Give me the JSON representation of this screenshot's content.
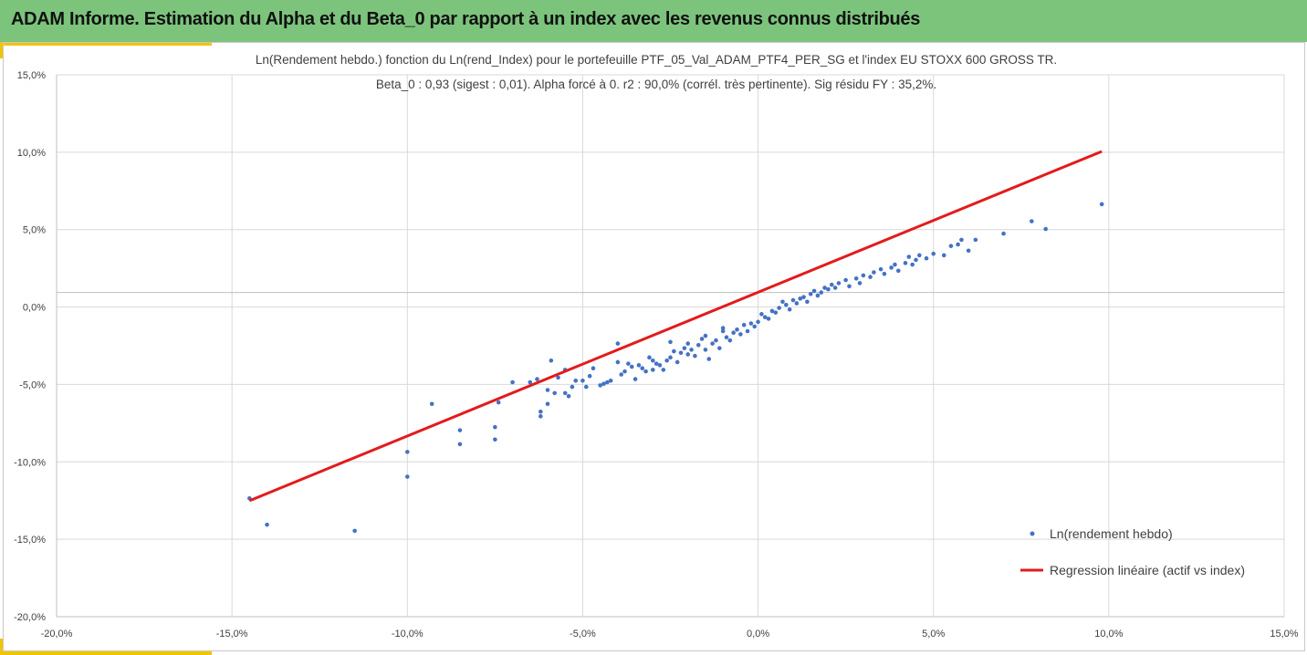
{
  "header": {
    "title": "ADAM Informe. Estimation du Alpha et du Beta_0 par rapport à un index avec les revenus connus distribués"
  },
  "colors": {
    "header_bg": "#7cc47c",
    "accent": "#f2c400",
    "points": "#4472c4",
    "regression": "#e31b1b",
    "grid": "#d9d9d9"
  },
  "chart_data": {
    "type": "scatter",
    "title": "Ln(Rendement hebdo.) fonction du Ln(rend_Index) pour le portefeuille PTF_05_Val_ADAM_PTF4_PER_SG et l'index EU STOXX 600 GROSS TR.",
    "subtitle": "Beta_0 : 0,93 (sigest : 0,01).  Alpha forcé à 0. r2 : 90,0% (corrél. très pertinente). Sig résidu FY : 35,2%.",
    "xlabel": "",
    "ylabel": "",
    "xlim": [
      -0.2,
      0.15
    ],
    "ylim": [
      -0.2,
      0.15
    ],
    "x_ticks": [
      "-20,0%",
      "-15,0%",
      "-10,0%",
      "-5,0%",
      "0,0%",
      "5,0%",
      "10,0%",
      "15,0%"
    ],
    "y_ticks": [
      "15,0%",
      "10,0%",
      "5,0%",
      "0,0%",
      "-5,0%",
      "-10,0%",
      "-15,0%",
      "-20,0%"
    ],
    "grid": true,
    "legend_position": "bottom-right",
    "series": [
      {
        "name": "Ln(rendement hebdo)",
        "type": "scatter",
        "points": [
          [
            -0.145,
            -0.133
          ],
          [
            -0.14,
            -0.15
          ],
          [
            -0.115,
            -0.154
          ],
          [
            -0.1,
            -0.119
          ],
          [
            -0.1,
            -0.103
          ],
          [
            -0.093,
            -0.072
          ],
          [
            -0.085,
            -0.089
          ],
          [
            -0.085,
            -0.098
          ],
          [
            -0.075,
            -0.095
          ],
          [
            -0.075,
            -0.087
          ],
          [
            -0.074,
            -0.071
          ],
          [
            -0.07,
            -0.058
          ],
          [
            -0.065,
            -0.058
          ],
          [
            -0.063,
            -0.056
          ],
          [
            -0.062,
            -0.08
          ],
          [
            -0.062,
            -0.077
          ],
          [
            -0.06,
            -0.072
          ],
          [
            -0.06,
            -0.063
          ],
          [
            -0.059,
            -0.044
          ],
          [
            -0.058,
            -0.065
          ],
          [
            -0.057,
            -0.055
          ],
          [
            -0.055,
            -0.065
          ],
          [
            -0.055,
            -0.05
          ],
          [
            -0.054,
            -0.067
          ],
          [
            -0.053,
            -0.061
          ],
          [
            -0.052,
            -0.057
          ],
          [
            -0.05,
            -0.057
          ],
          [
            -0.049,
            -0.061
          ],
          [
            -0.048,
            -0.054
          ],
          [
            -0.047,
            -0.049
          ],
          [
            -0.045,
            -0.06
          ],
          [
            -0.044,
            -0.059
          ],
          [
            -0.043,
            -0.058
          ],
          [
            -0.042,
            -0.057
          ],
          [
            -0.04,
            -0.033
          ],
          [
            -0.04,
            -0.045
          ],
          [
            -0.039,
            -0.053
          ],
          [
            -0.038,
            -0.051
          ],
          [
            -0.037,
            -0.046
          ],
          [
            -0.036,
            -0.048
          ],
          [
            -0.035,
            -0.056
          ],
          [
            -0.034,
            -0.047
          ],
          [
            -0.033,
            -0.049
          ],
          [
            -0.032,
            -0.051
          ],
          [
            -0.031,
            -0.042
          ],
          [
            -0.03,
            -0.044
          ],
          [
            -0.03,
            -0.05
          ],
          [
            -0.029,
            -0.046
          ],
          [
            -0.028,
            -0.047
          ],
          [
            -0.027,
            -0.05
          ],
          [
            -0.026,
            -0.044
          ],
          [
            -0.025,
            -0.032
          ],
          [
            -0.025,
            -0.042
          ],
          [
            -0.024,
            -0.038
          ],
          [
            -0.023,
            -0.045
          ],
          [
            -0.022,
            -0.039
          ],
          [
            -0.021,
            -0.036
          ],
          [
            -0.02,
            -0.04
          ],
          [
            -0.02,
            -0.033
          ],
          [
            -0.019,
            -0.037
          ],
          [
            -0.018,
            -0.041
          ],
          [
            -0.017,
            -0.034
          ],
          [
            -0.016,
            -0.03
          ],
          [
            -0.015,
            -0.037
          ],
          [
            -0.015,
            -0.028
          ],
          [
            -0.014,
            -0.043
          ],
          [
            -0.013,
            -0.033
          ],
          [
            -0.012,
            -0.031
          ],
          [
            -0.011,
            -0.036
          ],
          [
            -0.01,
            -0.023
          ],
          [
            -0.01,
            -0.025
          ],
          [
            -0.009,
            -0.029
          ],
          [
            -0.008,
            -0.031
          ],
          [
            -0.007,
            -0.026
          ],
          [
            -0.006,
            -0.024
          ],
          [
            -0.005,
            -0.027
          ],
          [
            -0.004,
            -0.021
          ],
          [
            -0.003,
            -0.025
          ],
          [
            -0.002,
            -0.02
          ],
          [
            -0.001,
            -0.022
          ],
          [
            0.0,
            -0.019
          ],
          [
            0.001,
            -0.014
          ],
          [
            0.002,
            -0.016
          ],
          [
            0.003,
            -0.017
          ],
          [
            0.004,
            -0.012
          ],
          [
            0.005,
            -0.013
          ],
          [
            0.006,
            -0.01
          ],
          [
            0.007,
            -0.006
          ],
          [
            0.008,
            -0.008
          ],
          [
            0.009,
            -0.011
          ],
          [
            0.01,
            -0.005
          ],
          [
            0.011,
            -0.007
          ],
          [
            0.012,
            -0.004
          ],
          [
            0.013,
            -0.003
          ],
          [
            0.014,
            -0.006
          ],
          [
            0.015,
            -0.001
          ],
          [
            0.016,
            0.001
          ],
          [
            0.017,
            -0.002
          ],
          [
            0.018,
            0.0
          ],
          [
            0.019,
            0.003
          ],
          [
            0.02,
            0.002
          ],
          [
            0.021,
            0.005
          ],
          [
            0.022,
            0.003
          ],
          [
            0.023,
            0.006
          ],
          [
            0.025,
            0.008
          ],
          [
            0.026,
            0.004
          ],
          [
            0.028,
            0.009
          ],
          [
            0.029,
            0.006
          ],
          [
            0.03,
            0.011
          ],
          [
            0.032,
            0.01
          ],
          [
            0.033,
            0.013
          ],
          [
            0.035,
            0.015
          ],
          [
            0.036,
            0.012
          ],
          [
            0.038,
            0.016
          ],
          [
            0.039,
            0.018
          ],
          [
            0.04,
            0.014
          ],
          [
            0.042,
            0.019
          ],
          [
            0.043,
            0.023
          ],
          [
            0.044,
            0.018
          ],
          [
            0.045,
            0.021
          ],
          [
            0.046,
            0.024
          ],
          [
            0.048,
            0.022
          ],
          [
            0.05,
            0.025
          ],
          [
            0.053,
            0.024
          ],
          [
            0.055,
            0.03
          ],
          [
            0.057,
            0.031
          ],
          [
            0.058,
            0.034
          ],
          [
            0.06,
            0.027
          ],
          [
            0.062,
            0.034
          ],
          [
            0.07,
            0.038
          ],
          [
            0.078,
            0.046
          ],
          [
            0.082,
            0.041
          ],
          [
            0.098,
            0.057
          ]
        ]
      },
      {
        "name": "Regression linéaire (actif vs index)",
        "type": "line",
        "points": [
          [
            -0.145,
            -0.1345
          ],
          [
            0.098,
            0.0911
          ]
        ]
      }
    ]
  }
}
